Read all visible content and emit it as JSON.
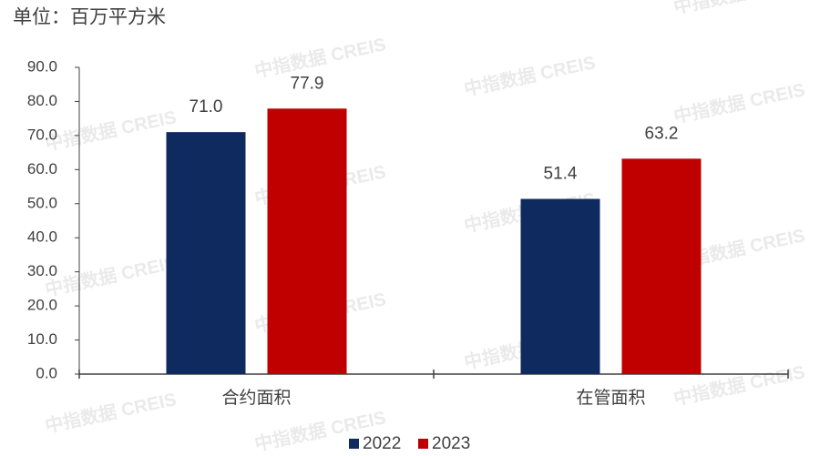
{
  "chart_data": {
    "type": "bar",
    "unit_label": "单位：百万平方米",
    "watermark": "中指数据 CREIS",
    "categories": [
      "合约面积",
      "在管面积"
    ],
    "series": [
      {
        "name": "2022",
        "color": "#0f2a5f",
        "values": [
          71.0,
          51.4
        ],
        "value_labels": [
          "71.0",
          "51.4"
        ]
      },
      {
        "name": "2023",
        "color": "#c00000",
        "values": [
          77.9,
          63.2
        ],
        "value_labels": [
          "77.9",
          "63.2"
        ]
      }
    ],
    "ylim": [
      0,
      90
    ],
    "yticks": [
      {
        "value": 0,
        "label": "0.0"
      },
      {
        "value": 10,
        "label": "10.0"
      },
      {
        "value": 20,
        "label": "20.0"
      },
      {
        "value": 30,
        "label": "30.0"
      },
      {
        "value": 40,
        "label": "40.0"
      },
      {
        "value": 50,
        "label": "50.0"
      },
      {
        "value": 60,
        "label": "60.0"
      },
      {
        "value": 70,
        "label": "70.0"
      },
      {
        "value": 80,
        "label": "80.0"
      },
      {
        "value": 90,
        "label": "90.0"
      }
    ],
    "legend": "bottom"
  }
}
